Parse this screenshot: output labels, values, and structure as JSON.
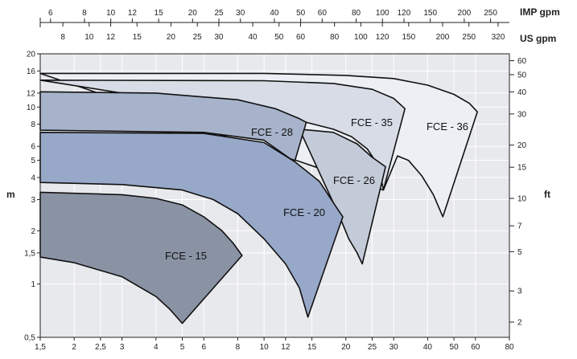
{
  "chart_data": {
    "type": "area",
    "title": "",
    "axes": {
      "x_bottom": {
        "unit": "m³/h",
        "scale": "log",
        "range": [
          1.5,
          80
        ],
        "ticks": [
          "1,5",
          "2",
          "2,5",
          "3",
          "4",
          "5",
          "6",
          "8",
          "10",
          "12",
          "15",
          "20",
          "25",
          "30",
          "40",
          "50",
          "60",
          "80"
        ]
      },
      "y_left": {
        "label": "m",
        "scale": "log",
        "range": [
          0.5,
          20
        ],
        "ticks": [
          "0,5",
          "1",
          "1,5",
          "2",
          "3",
          "4",
          "5",
          "6",
          "8",
          "10",
          "12",
          "16",
          "20"
        ]
      },
      "y_right": {
        "label": "ft",
        "scale": "log",
        "ticks": [
          "2",
          "3",
          "5",
          "7",
          "10",
          "15",
          "20",
          "30",
          "40",
          "50",
          "60"
        ]
      },
      "x_top_imp": {
        "label": "IMP gpm",
        "ticks": [
          "6",
          "8",
          "10",
          "12",
          "15",
          "20",
          "25",
          "30",
          "40",
          "50",
          "60",
          "80",
          "100",
          "120",
          "150",
          "200",
          "250"
        ]
      },
      "x_top_us": {
        "label": "US gpm",
        "ticks": [
          "8",
          "10",
          "12",
          "15",
          "20",
          "25",
          "30",
          "40",
          "50",
          "60",
          "80",
          "100",
          "120",
          "150",
          "200",
          "250",
          "320"
        ]
      }
    },
    "grid": true,
    "series": [
      {
        "name": "FCE - 36",
        "color": "#eceff4",
        "top": [
          [
            1.5,
            15.5
          ],
          [
            10,
            15.5
          ],
          [
            20,
            15.1
          ],
          [
            30,
            14.5
          ],
          [
            40,
            13.3
          ],
          [
            50,
            11.8
          ],
          [
            57,
            10.5
          ],
          [
            61,
            9.4
          ]
        ],
        "bottom": [
          [
            27.5,
            3.4
          ],
          [
            31,
            5.3
          ],
          [
            34,
            5.0
          ],
          [
            38,
            4.1
          ],
          [
            42,
            3.2
          ],
          [
            45.5,
            2.4
          ]
        ]
      },
      {
        "name": "FCE - 35",
        "color": "#d7dce6",
        "top": [
          [
            1.5,
            14.2
          ],
          [
            10,
            14.1
          ],
          [
            18,
            13.6
          ],
          [
            25,
            12.6
          ],
          [
            30,
            11.2
          ],
          [
            33,
            9.8
          ]
        ],
        "bottom": [
          [
            14.3,
            8.2
          ],
          [
            18,
            7.5
          ],
          [
            21,
            6.8
          ],
          [
            24,
            5.8
          ],
          [
            26.5,
            4.6
          ],
          [
            27.5,
            3.4
          ]
        ]
      },
      {
        "name": "FCE - 26",
        "color": "#c3cad8",
        "top": [
          [
            13.5,
            7.5
          ],
          [
            18,
            7.2
          ],
          [
            22,
            6.2
          ],
          [
            25,
            5.2
          ],
          [
            28,
            4.6
          ]
        ],
        "bottom": [
          [
            19,
            2.4
          ],
          [
            20.5,
            1.8
          ],
          [
            22,
            1.5
          ],
          [
            23,
            1.3
          ]
        ]
      },
      {
        "name": "FCE - 28",
        "color": "#a6b3ca",
        "top": [
          [
            1.5,
            12.2
          ],
          [
            4,
            12.0
          ],
          [
            8,
            11.0
          ],
          [
            11,
            9.8
          ],
          [
            13.5,
            8.6
          ],
          [
            14.3,
            8.2
          ]
        ],
        "bottom": [
          [
            1.5,
            7.4
          ],
          [
            6,
            7.2
          ],
          [
            10,
            6.5
          ],
          [
            12.5,
            5.1
          ],
          [
            13,
            5.0
          ]
        ]
      },
      {
        "name": "FCE - 20",
        "color": "#97a8c8",
        "top": [
          [
            1.5,
            7.2
          ],
          [
            6,
            7.1
          ],
          [
            10,
            6.3
          ],
          [
            13,
            4.9
          ],
          [
            16,
            3.8
          ],
          [
            18.5,
            2.7
          ],
          [
            19.5,
            2.4
          ]
        ],
        "bottom": [
          [
            1.5,
            3.75
          ],
          [
            3,
            3.65
          ],
          [
            5,
            3.4
          ],
          [
            6.5,
            3.0
          ],
          [
            8,
            2.5
          ],
          [
            10,
            1.8
          ],
          [
            12,
            1.3
          ],
          [
            13.5,
            0.95
          ],
          [
            14.5,
            0.65
          ]
        ]
      },
      {
        "name": "FCE - 15",
        "color": "#8a93a4",
        "top": [
          [
            1.5,
            3.3
          ],
          [
            3,
            3.2
          ],
          [
            4,
            3.05
          ],
          [
            5,
            2.8
          ],
          [
            6,
            2.4
          ],
          [
            7,
            2.0
          ],
          [
            7.7,
            1.7
          ],
          [
            8.3,
            1.45
          ]
        ],
        "bottom": [
          [
            1.5,
            1.42
          ],
          [
            2,
            1.32
          ],
          [
            3,
            1.1
          ],
          [
            4,
            0.85
          ],
          [
            4.5,
            0.72
          ],
          [
            5,
            0.6
          ]
        ]
      }
    ]
  }
}
